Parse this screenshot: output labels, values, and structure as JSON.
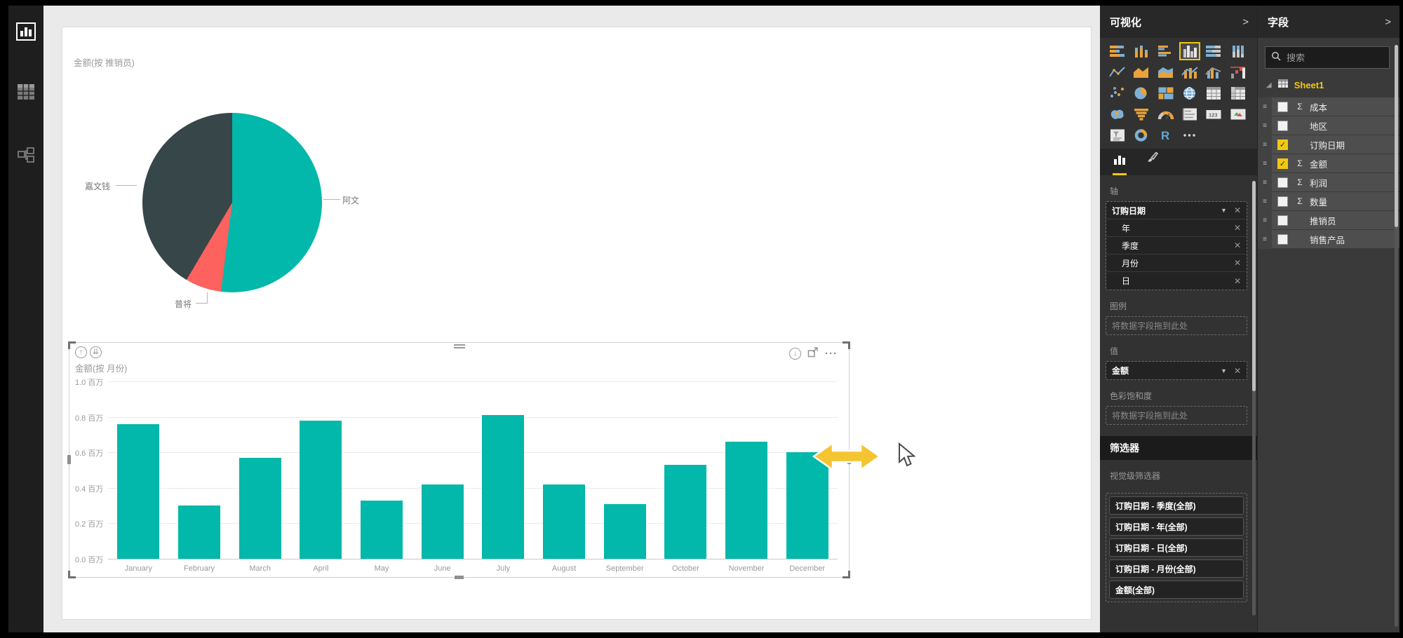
{
  "colors": {
    "teal": "#01B8AA",
    "dark_slate": "#374649",
    "coral": "#FD625E",
    "accent_yellow": "#F2C80F"
  },
  "left_nav": {
    "items": [
      {
        "name": "report-view",
        "active": true
      },
      {
        "name": "data-view",
        "active": false
      },
      {
        "name": "model-view",
        "active": false
      }
    ]
  },
  "chart_data": [
    {
      "type": "pie",
      "title": "金额(按 推销员)",
      "slices": [
        {
          "label": "阿文",
          "percent": 52.0,
          "color": "#01B8AA"
        },
        {
          "label": "普将",
          "percent": 6.5,
          "color": "#FD625E"
        },
        {
          "label": "嘉文钱",
          "percent": 41.5,
          "color": "#374649"
        }
      ],
      "legend_position": "outside-labels"
    },
    {
      "type": "bar",
      "title": "金额(按 月份)",
      "categories": [
        "January",
        "February",
        "March",
        "April",
        "May",
        "June",
        "July",
        "August",
        "September",
        "October",
        "November",
        "December"
      ],
      "values": [
        0.76,
        0.3,
        0.57,
        0.78,
        0.33,
        0.42,
        0.81,
        0.42,
        0.31,
        0.53,
        0.66,
        0.6
      ],
      "unit": "百万",
      "ylim": [
        0,
        1.0
      ],
      "y_tick_labels": [
        "1.0 百万",
        "0.8 百万",
        "0.6 百万",
        "0.4 百万",
        "0.2 百万",
        "0.0 百万"
      ],
      "grid": true,
      "bar_color": "#01B8AA"
    }
  ],
  "bar_visual_toolbar": {
    "drill_up": "↑",
    "drill_down_all": "⇊",
    "drill_down": "↓",
    "more_options": "···"
  },
  "visualizations_panel": {
    "title": "可视化",
    "collapse_chevron": ">",
    "icons": [
      {
        "name": "stacked-bar-chart",
        "glyph": "stacked-bar",
        "selected": false
      },
      {
        "name": "stacked-column-chart",
        "glyph": "stacked-column",
        "selected": false
      },
      {
        "name": "clustered-bar-chart",
        "glyph": "clustered-bar",
        "selected": false
      },
      {
        "name": "clustered-column-chart",
        "glyph": "clustered-column",
        "selected": true
      },
      {
        "name": "100-stacked-bar-chart",
        "glyph": "p100-bar",
        "selected": false
      },
      {
        "name": "100-stacked-column-chart",
        "glyph": "p100-column",
        "selected": false
      },
      {
        "name": "line-chart",
        "glyph": "line",
        "selected": false
      },
      {
        "name": "area-chart",
        "glyph": "area",
        "selected": false
      },
      {
        "name": "stacked-area-chart",
        "glyph": "stacked-area",
        "selected": false
      },
      {
        "name": "line-and-stacked-column-chart",
        "glyph": "combo1",
        "selected": false
      },
      {
        "name": "line-and-clustered-column-chart",
        "glyph": "combo2",
        "selected": false
      },
      {
        "name": "waterfall-chart",
        "glyph": "waterfall",
        "selected": false
      },
      {
        "name": "scatter-chart",
        "glyph": "scatter",
        "selected": false
      },
      {
        "name": "pie-chart",
        "glyph": "pie",
        "selected": false
      },
      {
        "name": "treemap",
        "glyph": "treemap",
        "selected": false
      },
      {
        "name": "map",
        "glyph": "globe",
        "selected": false
      },
      {
        "name": "table",
        "glyph": "table",
        "selected": false
      },
      {
        "name": "matrix",
        "glyph": "matrix",
        "selected": false
      },
      {
        "name": "filled-map",
        "glyph": "filled-map",
        "selected": false
      },
      {
        "name": "funnel",
        "glyph": "funnel",
        "selected": false
      },
      {
        "name": "gauge",
        "glyph": "gauge",
        "selected": false
      },
      {
        "name": "multi-row-card",
        "glyph": "multirow-card",
        "selected": false
      },
      {
        "name": "card",
        "glyph": "card",
        "selected": false
      },
      {
        "name": "kpi",
        "glyph": "kpi",
        "selected": false
      },
      {
        "name": "slicer",
        "glyph": "slicer",
        "selected": false
      },
      {
        "name": "donut-chart",
        "glyph": "donut",
        "selected": false
      },
      {
        "name": "r-script-visual",
        "glyph": "r",
        "selected": false
      },
      {
        "name": "more-visuals",
        "glyph": "more",
        "selected": false
      }
    ],
    "sections": {
      "axis_label": "轴",
      "axis_fields": [
        {
          "label": "订购日期",
          "caret": true,
          "sub": false
        },
        {
          "label": "年",
          "caret": false,
          "sub": true
        },
        {
          "label": "季度",
          "caret": false,
          "sub": true
        },
        {
          "label": "月份",
          "caret": false,
          "sub": true
        },
        {
          "label": "日",
          "caret": false,
          "sub": true
        }
      ],
      "legend_label": "图例",
      "legend_placeholder": "将数据字段拖到此处",
      "values_label": "值",
      "value_fields": [
        {
          "label": "金额",
          "caret": true,
          "sub": false
        }
      ],
      "saturation_label": "色彩饱和度",
      "saturation_placeholder": "将数据字段拖到此处",
      "filters_label": "筛选器",
      "visual_filters_label": "视觉级筛选器",
      "visual_filters": [
        "订购日期 - 季度(全部)",
        "订购日期 - 年(全部)",
        "订购日期 - 日(全部)",
        "订购日期 - 月份(全部)",
        "金额(全部)"
      ]
    }
  },
  "fields_panel": {
    "title": "字段",
    "collapse_chevron": ">",
    "search_placeholder": "搜索",
    "table_name": "Sheet1",
    "fields": [
      {
        "label": "成本",
        "checked": false,
        "sigma": true
      },
      {
        "label": "地区",
        "checked": false,
        "sigma": false
      },
      {
        "label": "订购日期",
        "checked": true,
        "sigma": false
      },
      {
        "label": "金额",
        "checked": true,
        "sigma": true
      },
      {
        "label": "利润",
        "checked": false,
        "sigma": true
      },
      {
        "label": "数量",
        "checked": false,
        "sigma": true
      },
      {
        "label": "推销员",
        "checked": false,
        "sigma": false
      },
      {
        "label": "销售产品",
        "checked": false,
        "sigma": false
      }
    ]
  }
}
